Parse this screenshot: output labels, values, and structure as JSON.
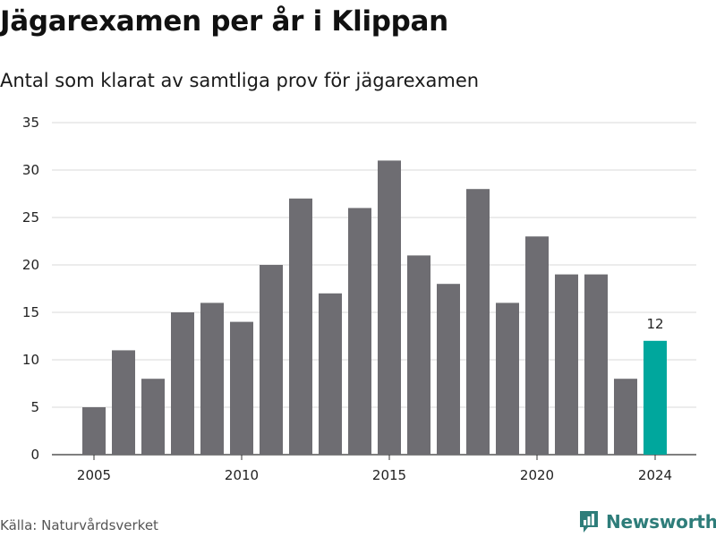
{
  "title": "Jägarexamen per år i Klippan",
  "subtitle": "Antal som klarat av samtliga prov för jägarexamen",
  "source": "Källa: Naturvårdsverket",
  "brand": {
    "name": "Newsworthy",
    "icon": "newsworthy-logo-icon"
  },
  "colors": {
    "bar": "#6e6d72",
    "highlight": "#00a79d",
    "grid": "#d9d9d9",
    "brand": "#2e7d7a"
  },
  "chart_data": {
    "type": "bar",
    "categories": [
      "2005",
      "2006",
      "2007",
      "2008",
      "2009",
      "2010",
      "2011",
      "2012",
      "2013",
      "2014",
      "2015",
      "2016",
      "2017",
      "2018",
      "2019",
      "2020",
      "2021",
      "2022",
      "2023",
      "2024"
    ],
    "values": [
      5,
      11,
      8,
      15,
      16,
      14,
      20,
      27,
      17,
      26,
      31,
      21,
      18,
      28,
      16,
      23,
      19,
      19,
      8,
      12
    ],
    "x_tick_labels": [
      "2005",
      "2010",
      "2015",
      "2020",
      "2024"
    ],
    "y_ticks": [
      0,
      5,
      10,
      15,
      20,
      25,
      30,
      35
    ],
    "ylim": [
      0,
      35
    ],
    "highlight_category": "2024",
    "highlight_label": "12",
    "grid": true,
    "xlabel": "",
    "ylabel": ""
  }
}
